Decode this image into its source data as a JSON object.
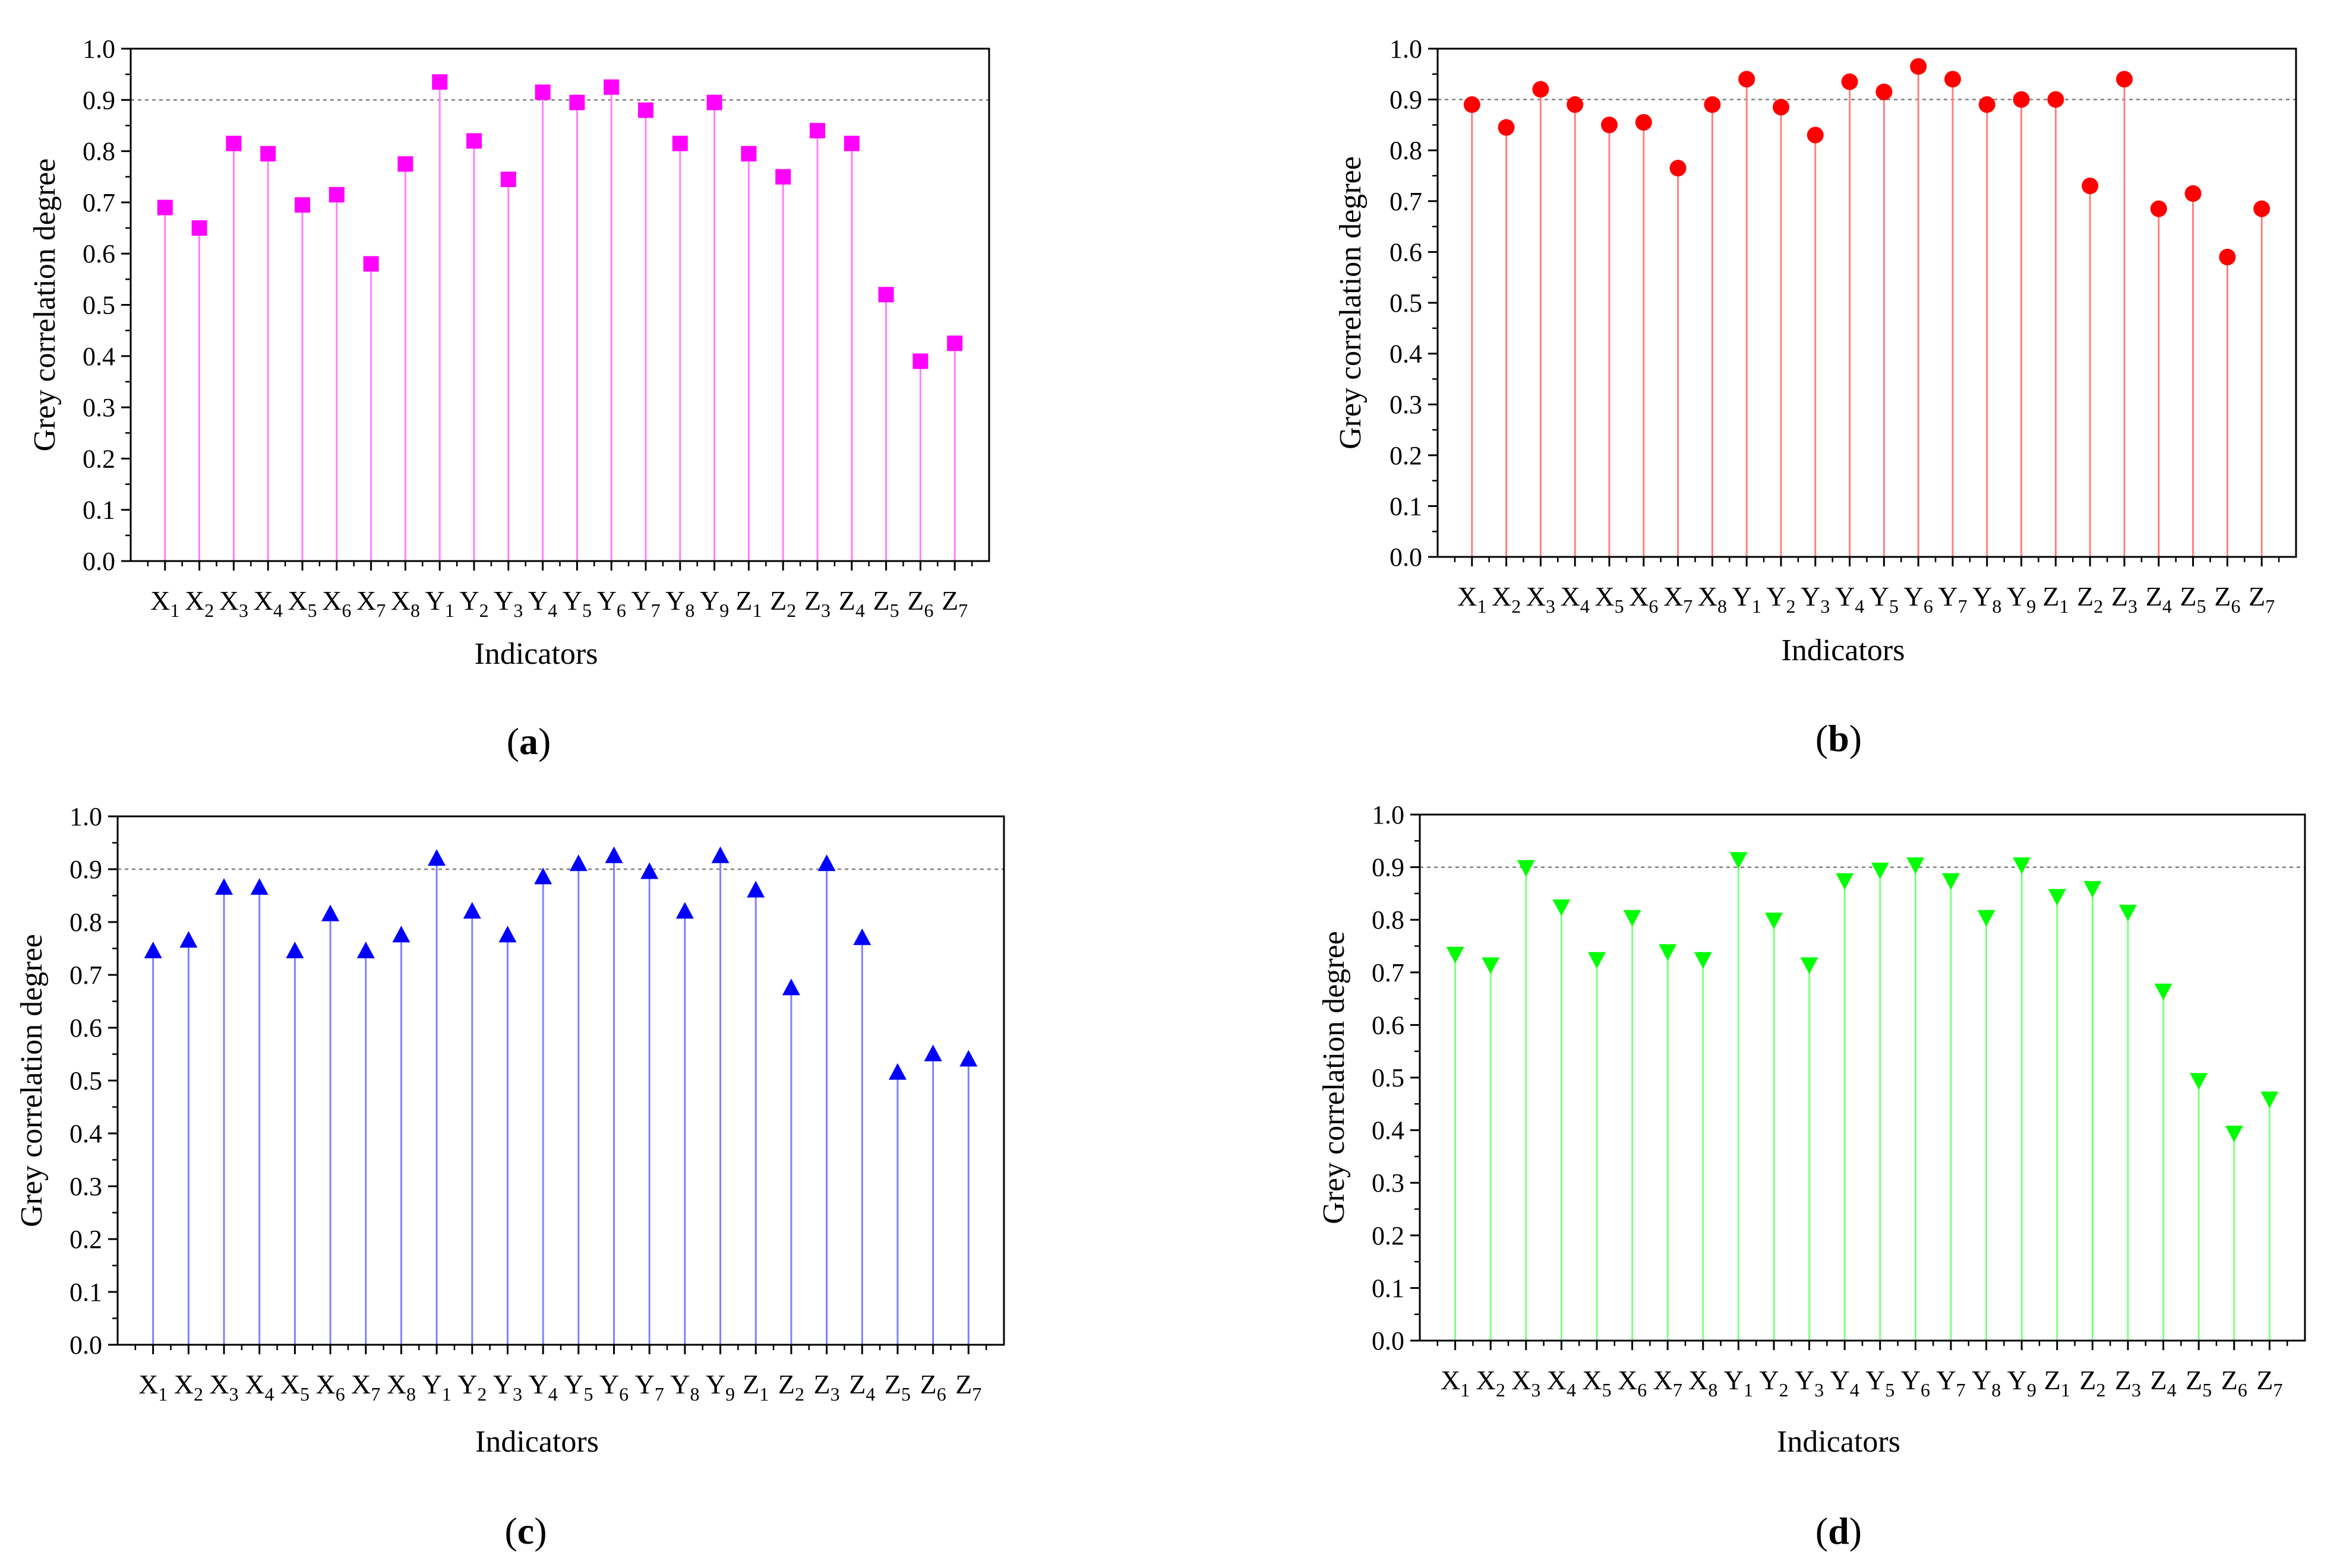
{
  "figure": {
    "categories": [
      "X1",
      "X2",
      "X3",
      "X4",
      "X5",
      "X6",
      "X7",
      "X8",
      "Y1",
      "Y2",
      "Y3",
      "Y4",
      "Y5",
      "Y6",
      "Y7",
      "Y8",
      "Y9",
      "Z1",
      "Z2",
      "Z3",
      "Z4",
      "Z5",
      "Z6",
      "Z7"
    ],
    "category_letters": [
      "X",
      "X",
      "X",
      "X",
      "X",
      "X",
      "X",
      "X",
      "Y",
      "Y",
      "Y",
      "Y",
      "Y",
      "Y",
      "Y",
      "Y",
      "Y",
      "Z",
      "Z",
      "Z",
      "Z",
      "Z",
      "Z",
      "Z"
    ],
    "category_subscripts": [
      "1",
      "2",
      "3",
      "4",
      "5",
      "6",
      "7",
      "8",
      "1",
      "2",
      "3",
      "4",
      "5",
      "6",
      "7",
      "8",
      "9",
      "1",
      "2",
      "3",
      "4",
      "5",
      "6",
      "7"
    ]
  },
  "chart_data": [
    {
      "id": "a",
      "type": "scatter",
      "style": "stem",
      "panel_label": "(a)",
      "title": "",
      "xlabel": "Indicators",
      "ylabel": "Grey correlation degree",
      "ylim": [
        0.0,
        1.0
      ],
      "yticks": [
        "0.0",
        "0.1",
        "0.2",
        "0.3",
        "0.4",
        "0.5",
        "0.6",
        "0.7",
        "0.8",
        "0.9",
        "1.0"
      ],
      "reference_line": 0.9,
      "marker": "square",
      "marker_color": "#ff00ff",
      "stem_color": "#ff80ff",
      "values": [
        0.69,
        0.65,
        0.815,
        0.795,
        0.695,
        0.715,
        0.58,
        0.775,
        0.935,
        0.82,
        0.745,
        0.915,
        0.895,
        0.925,
        0.88,
        0.815,
        0.895,
        0.795,
        0.75,
        0.84,
        0.815,
        0.52,
        0.39,
        0.425
      ]
    },
    {
      "id": "b",
      "type": "scatter",
      "style": "stem",
      "panel_label": "(b)",
      "title": "",
      "xlabel": "Indicators",
      "ylabel": "Grey correlation degree",
      "ylim": [
        0.0,
        1.0
      ],
      "yticks": [
        "0.0",
        "0.1",
        "0.2",
        "0.3",
        "0.4",
        "0.5",
        "0.6",
        "0.7",
        "0.8",
        "0.9",
        "1.0"
      ],
      "reference_line": 0.9,
      "marker": "circle",
      "marker_color": "#ff0000",
      "stem_color": "#ff8080",
      "values": [
        0.89,
        0.845,
        0.92,
        0.89,
        0.85,
        0.855,
        0.765,
        0.89,
        0.94,
        0.885,
        0.83,
        0.935,
        0.915,
        0.965,
        0.94,
        0.89,
        0.9,
        0.9,
        0.73,
        0.94,
        0.685,
        0.715,
        0.59,
        0.685
      ]
    },
    {
      "id": "c",
      "type": "scatter",
      "style": "stem",
      "panel_label": "(c)",
      "title": "",
      "xlabel": "Indicators",
      "ylabel": "Grey correlation degree",
      "ylim": [
        0.0,
        1.0
      ],
      "yticks": [
        "0.0",
        "0.1",
        "0.2",
        "0.3",
        "0.4",
        "0.5",
        "0.6",
        "0.7",
        "0.8",
        "0.9",
        "1.0"
      ],
      "reference_line": 0.9,
      "marker": "triangle-up",
      "marker_color": "#0000ff",
      "stem_color": "#8080ff",
      "values": [
        0.745,
        0.765,
        0.865,
        0.865,
        0.745,
        0.815,
        0.745,
        0.775,
        0.92,
        0.82,
        0.775,
        0.885,
        0.91,
        0.925,
        0.895,
        0.82,
        0.925,
        0.86,
        0.675,
        0.91,
        0.77,
        0.515,
        0.55,
        0.54
      ]
    },
    {
      "id": "d",
      "type": "scatter",
      "style": "stem",
      "panel_label": "(d)",
      "title": "",
      "xlabel": "Indicators",
      "ylabel": "Grey correlation degree",
      "ylim": [
        0.0,
        1.0
      ],
      "yticks": [
        "0.0",
        "0.1",
        "0.2",
        "0.3",
        "0.4",
        "0.5",
        "0.6",
        "0.7",
        "0.8",
        "0.9",
        "1.0"
      ],
      "reference_line": 0.9,
      "marker": "triangle-down",
      "marker_color": "#00ff00",
      "stem_color": "#80ff80",
      "values": [
        0.735,
        0.715,
        0.9,
        0.825,
        0.725,
        0.805,
        0.74,
        0.725,
        0.915,
        0.8,
        0.715,
        0.875,
        0.895,
        0.905,
        0.875,
        0.805,
        0.905,
        0.845,
        0.86,
        0.815,
        0.665,
        0.495,
        0.395,
        0.46
      ]
    }
  ]
}
